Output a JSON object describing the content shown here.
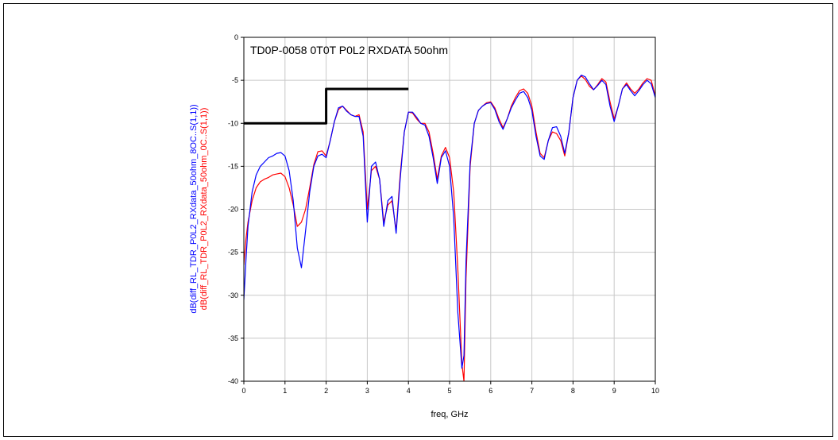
{
  "chart_data": {
    "type": "line",
    "title": "TD0P-0058 0T0T P0L2 RXDATA 50ohm",
    "xlabel": "freq, GHz",
    "ylabels": [
      {
        "text": "dB(diff_RL_TDR_P0L2_RXdata_50ohm_8OC..S(1,1))",
        "color": "#0000ff"
      },
      {
        "text": "dB(diff_RL_TDR_P0L2_RXdata_50ohm_0C..S(1,1))",
        "color": "#ff0000"
      }
    ],
    "xlim": [
      0,
      10
    ],
    "ylim": [
      -40,
      0
    ],
    "xticks": [
      "0",
      "1",
      "2",
      "3",
      "4",
      "5",
      "6",
      "7",
      "8",
      "9",
      "10"
    ],
    "yticks": [
      "0",
      "-5",
      "-10",
      "-15",
      "-20",
      "-25",
      "-30",
      "-35",
      "-40"
    ],
    "grid": true,
    "series": [
      {
        "color": "#ff0000",
        "x": [
          0.0,
          0.05,
          0.1,
          0.2,
          0.3,
          0.4,
          0.5,
          0.6,
          0.7,
          0.8,
          0.9,
          1.0,
          1.1,
          1.2,
          1.3,
          1.4,
          1.5,
          1.6,
          1.7,
          1.8,
          1.9,
          2.0,
          2.1,
          2.2,
          2.3,
          2.4,
          2.5,
          2.6,
          2.7,
          2.8,
          2.9,
          3.0,
          3.1,
          3.2,
          3.3,
          3.4,
          3.5,
          3.6,
          3.7,
          3.8,
          3.9,
          4.0,
          4.1,
          4.2,
          4.3,
          4.4,
          4.5,
          4.6,
          4.7,
          4.8,
          4.9,
          5.0,
          5.1,
          5.2,
          5.3,
          5.35,
          5.4,
          5.5,
          5.6,
          5.7,
          5.8,
          5.9,
          6.0,
          6.1,
          6.2,
          6.3,
          6.4,
          6.5,
          6.6,
          6.7,
          6.8,
          6.9,
          7.0,
          7.1,
          7.2,
          7.3,
          7.4,
          7.5,
          7.6,
          7.7,
          7.8,
          7.9,
          8.0,
          8.1,
          8.2,
          8.3,
          8.4,
          8.5,
          8.6,
          8.7,
          8.8,
          8.9,
          9.0,
          9.1,
          9.2,
          9.3,
          9.4,
          9.5,
          9.6,
          9.7,
          9.8,
          9.9,
          10.0
        ],
        "y": [
          -26.5,
          -23.5,
          -21.5,
          -19.0,
          -17.5,
          -16.8,
          -16.5,
          -16.3,
          -16.0,
          -15.9,
          -15.8,
          -16.2,
          -17.5,
          -19.5,
          -22.0,
          -21.5,
          -20.0,
          -17.5,
          -14.8,
          -13.3,
          -13.2,
          -13.8,
          -12.0,
          -9.8,
          -8.4,
          -8.0,
          -8.5,
          -9.0,
          -9.2,
          -9.0,
          -11.0,
          -20.0,
          -15.5,
          -15.0,
          -16.5,
          -21.5,
          -19.5,
          -19.0,
          -22.5,
          -16.0,
          -11.0,
          -8.7,
          -8.8,
          -9.5,
          -10.0,
          -10.0,
          -11.0,
          -13.5,
          -16.5,
          -13.8,
          -12.8,
          -14.0,
          -18.0,
          -27.0,
          -38.0,
          -40.0,
          -28.0,
          -15.0,
          -10.0,
          -8.5,
          -8.0,
          -7.6,
          -7.5,
          -8.2,
          -9.5,
          -10.5,
          -9.5,
          -8.0,
          -7.0,
          -6.2,
          -6.0,
          -6.5,
          -8.0,
          -11.0,
          -13.5,
          -14.0,
          -12.0,
          -11.0,
          -11.2,
          -12.0,
          -13.8,
          -11.0,
          -7.0,
          -5.0,
          -4.5,
          -4.9,
          -5.7,
          -6.1,
          -5.5,
          -4.8,
          -5.2,
          -7.5,
          -9.5,
          -8.0,
          -6.0,
          -5.3,
          -6.0,
          -6.5,
          -6.0,
          -5.3,
          -4.8,
          -5.0,
          -6.8
        ]
      },
      {
        "color": "#0000ff",
        "x": [
          0.0,
          0.05,
          0.1,
          0.2,
          0.3,
          0.4,
          0.5,
          0.6,
          0.7,
          0.8,
          0.9,
          1.0,
          1.1,
          1.2,
          1.3,
          1.4,
          1.5,
          1.6,
          1.7,
          1.8,
          1.9,
          2.0,
          2.1,
          2.2,
          2.3,
          2.4,
          2.5,
          2.6,
          2.7,
          2.8,
          2.9,
          3.0,
          3.1,
          3.2,
          3.3,
          3.4,
          3.5,
          3.6,
          3.7,
          3.8,
          3.9,
          4.0,
          4.1,
          4.2,
          4.3,
          4.4,
          4.5,
          4.6,
          4.7,
          4.8,
          4.9,
          5.0,
          5.1,
          5.2,
          5.3,
          5.35,
          5.4,
          5.5,
          5.6,
          5.7,
          5.8,
          5.9,
          6.0,
          6.1,
          6.2,
          6.3,
          6.4,
          6.5,
          6.6,
          6.7,
          6.8,
          6.9,
          7.0,
          7.1,
          7.2,
          7.3,
          7.4,
          7.5,
          7.6,
          7.7,
          7.8,
          7.9,
          8.0,
          8.1,
          8.2,
          8.3,
          8.4,
          8.5,
          8.6,
          8.7,
          8.8,
          8.9,
          9.0,
          9.1,
          9.2,
          9.3,
          9.4,
          9.5,
          9.6,
          9.7,
          9.8,
          9.9,
          10.0
        ],
        "y": [
          -30.5,
          -26.0,
          -22.0,
          -18.0,
          -16.0,
          -15.0,
          -14.5,
          -14.0,
          -13.8,
          -13.5,
          -13.4,
          -13.8,
          -15.5,
          -19.0,
          -24.5,
          -26.8,
          -22.5,
          -18.0,
          -15.0,
          -13.8,
          -13.6,
          -14.0,
          -12.0,
          -9.8,
          -8.2,
          -8.0,
          -8.6,
          -9.0,
          -9.2,
          -9.2,
          -11.5,
          -21.5,
          -15.0,
          -14.5,
          -16.5,
          -22.0,
          -19.0,
          -18.5,
          -22.8,
          -16.5,
          -11.0,
          -8.7,
          -8.7,
          -9.3,
          -10.0,
          -10.2,
          -11.5,
          -14.0,
          -17.0,
          -14.0,
          -13.2,
          -15.0,
          -21.0,
          -32.0,
          -38.5,
          -37.0,
          -26.0,
          -14.5,
          -10.0,
          -8.5,
          -8.0,
          -7.7,
          -7.6,
          -8.4,
          -9.8,
          -10.7,
          -9.5,
          -8.2,
          -7.3,
          -6.5,
          -6.3,
          -7.0,
          -8.5,
          -11.5,
          -13.8,
          -14.2,
          -12.0,
          -10.5,
          -10.4,
          -11.5,
          -13.5,
          -11.0,
          -7.0,
          -5.0,
          -4.4,
          -4.6,
          -5.4,
          -6.1,
          -5.6,
          -5.0,
          -5.5,
          -8.0,
          -9.8,
          -8.0,
          -6.0,
          -5.5,
          -6.2,
          -6.8,
          -6.2,
          -5.5,
          -5.0,
          -5.4,
          -7.0
        ]
      },
      {
        "color": "#000000",
        "x": [
          0,
          2,
          2,
          4
        ],
        "y": [
          -10,
          -10,
          -6,
          -6
        ]
      }
    ]
  }
}
